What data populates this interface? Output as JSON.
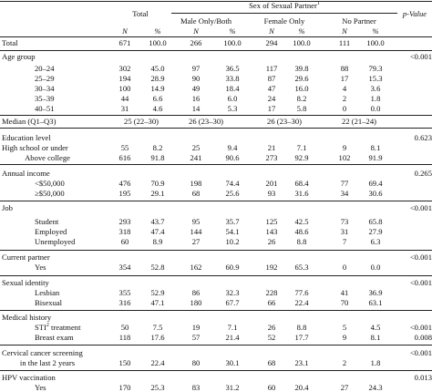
{
  "header": {
    "total": "Total",
    "sex_partner": "Sex of Sexual Partner",
    "sex_partner_sup": "1",
    "pvalue": "p-Value",
    "male": "Male Only/Both",
    "female": "Female Only",
    "nopartner": "No Partner",
    "n_label": "N",
    "pct_label": "%"
  },
  "rows": [
    {
      "label": "Total",
      "indent": 0,
      "center": false,
      "vals": [
        "671",
        "100.0",
        "266",
        "100.0",
        "294",
        "100.0",
        "111",
        "100.0"
      ],
      "p": ""
    },
    {
      "label": "Age group",
      "indent": 0,
      "center": false,
      "vals": [
        "",
        "",
        "",
        "",
        "",
        "",
        "",
        ""
      ],
      "p": "<0.001"
    },
    {
      "label": "20–24",
      "indent": 1,
      "center": false,
      "vals": [
        "302",
        "45.0",
        "97",
        "36.5",
        "117",
        "39.8",
        "88",
        "79.3"
      ],
      "p": ""
    },
    {
      "label": "25–29",
      "indent": 1,
      "center": false,
      "vals": [
        "194",
        "28.9",
        "90",
        "33.8",
        "87",
        "29.6",
        "17",
        "15.3"
      ],
      "p": ""
    },
    {
      "label": "30–34",
      "indent": 1,
      "center": false,
      "vals": [
        "100",
        "14.9",
        "49",
        "18.4",
        "47",
        "16.0",
        "4",
        "3.6"
      ],
      "p": ""
    },
    {
      "label": "35–39",
      "indent": 1,
      "center": false,
      "vals": [
        "44",
        "6.6",
        "16",
        "6.0",
        "24",
        "8.2",
        "2",
        "1.8"
      ],
      "p": ""
    },
    {
      "label": "40–51",
      "indent": 1,
      "center": false,
      "vals": [
        "31",
        "4.6",
        "14",
        "5.3",
        "17",
        "5.8",
        "0",
        "0.0"
      ],
      "p": ""
    },
    {
      "label": "Median (Q1–Q3)",
      "indent": 0,
      "center": false,
      "span": [
        "25 (22–30)",
        "26 (23–30)",
        "26 (23–30)",
        "22 (21–24)"
      ],
      "p": ""
    },
    {
      "label": "Education level",
      "indent": 0,
      "center": false,
      "vals": [
        "",
        "",
        "",
        "",
        "",
        "",
        "",
        ""
      ],
      "p": "0.623"
    },
    {
      "label": "High school or under",
      "indent": 0,
      "center": false,
      "vals": [
        "55",
        "8.2",
        "25",
        "9.4",
        "21",
        "7.1",
        "9",
        "8.1"
      ],
      "p": ""
    },
    {
      "label": "Above college",
      "indent": 0,
      "center": true,
      "vals": [
        "616",
        "91.8",
        "241",
        "90.6",
        "273",
        "92.9",
        "102",
        "91.9"
      ],
      "p": ""
    },
    {
      "label": "Annual income",
      "indent": 0,
      "center": false,
      "vals": [
        "",
        "",
        "",
        "",
        "",
        "",
        "",
        ""
      ],
      "p": "0.265"
    },
    {
      "label": "<$50,000",
      "indent": 1,
      "center": false,
      "vals": [
        "476",
        "70.9",
        "198",
        "74.4",
        "201",
        "68.4",
        "77",
        "69.4"
      ],
      "p": ""
    },
    {
      "label": "≥$50,000",
      "indent": 1,
      "center": false,
      "vals": [
        "195",
        "29.1",
        "68",
        "25.6",
        "93",
        "31.6",
        "34",
        "30.6"
      ],
      "p": ""
    },
    {
      "label": "Job",
      "indent": 0,
      "center": false,
      "vals": [
        "",
        "",
        "",
        "",
        "",
        "",
        "",
        ""
      ],
      "p": "<0.001"
    },
    {
      "label": "Student",
      "indent": 1,
      "center": false,
      "vals": [
        "293",
        "43.7",
        "95",
        "35.7",
        "125",
        "42.5",
        "73",
        "65.8"
      ],
      "p": ""
    },
    {
      "label": "Employed",
      "indent": 1,
      "center": false,
      "vals": [
        "318",
        "47.4",
        "144",
        "54.1",
        "143",
        "48.6",
        "31",
        "27.9"
      ],
      "p": ""
    },
    {
      "label": "Unemployed",
      "indent": 1,
      "center": false,
      "vals": [
        "60",
        "8.9",
        "27",
        "10.2",
        "26",
        "8.8",
        "7",
        "6.3"
      ],
      "p": ""
    },
    {
      "label": "Current partner",
      "indent": 0,
      "center": false,
      "vals": [
        "",
        "",
        "",
        "",
        "",
        "",
        "",
        ""
      ],
      "p": "<0.001"
    },
    {
      "label": "Yes",
      "indent": 1,
      "center": false,
      "vals": [
        "354",
        "52.8",
        "162",
        "60.9",
        "192",
        "65.3",
        "0",
        "0.0"
      ],
      "p": ""
    },
    {
      "label": "Sexual identity",
      "indent": 0,
      "center": false,
      "vals": [
        "",
        "",
        "",
        "",
        "",
        "",
        "",
        ""
      ],
      "p": "<0.001"
    },
    {
      "label": "Lesbian",
      "indent": 1,
      "center": false,
      "vals": [
        "355",
        "52.9",
        "86",
        "32.3",
        "228",
        "77.6",
        "41",
        "36.9"
      ],
      "p": ""
    },
    {
      "label": "Bisexual",
      "indent": 1,
      "center": false,
      "vals": [
        "316",
        "47.1",
        "180",
        "67.7",
        "66",
        "22.4",
        "70",
        "63.1"
      ],
      "p": ""
    },
    {
      "label": "Medical history",
      "indent": 0,
      "center": false,
      "vals": [
        "",
        "",
        "",
        "",
        "",
        "",
        "",
        ""
      ],
      "p": ""
    },
    {
      "label": "STI",
      "label_sup": "2",
      "label_tail": " treatment",
      "indent": 1,
      "center": false,
      "vals": [
        "50",
        "7.5",
        "19",
        "7.1",
        "26",
        "8.8",
        "5",
        "4.5"
      ],
      "p": "<0.001"
    },
    {
      "label": "Breast exam",
      "indent": 1,
      "center": false,
      "vals": [
        "118",
        "17.6",
        "57",
        "21.4",
        "52",
        "17.7",
        "9",
        "8.1"
      ],
      "p": "0.008"
    },
    {
      "label": "Cervical cancer screening",
      "indent": 0,
      "center": false,
      "vals": [
        "",
        "",
        "",
        "",
        "",
        "",
        "",
        ""
      ],
      "p": "<0.001"
    },
    {
      "label": "in the last 2 years",
      "indent": 0,
      "center": true,
      "vals": [
        "150",
        "22.4",
        "80",
        "30.1",
        "68",
        "23.1",
        "2",
        "1.8"
      ],
      "p": ""
    },
    {
      "label": "HPV vaccination",
      "indent": 0,
      "center": false,
      "vals": [
        "",
        "",
        "",
        "",
        "",
        "",
        "",
        ""
      ],
      "p": "0.013"
    },
    {
      "label": "Yes",
      "indent": 1,
      "center": false,
      "vals": [
        "170",
        "25.3",
        "83",
        "31.2",
        "60",
        "20.4",
        "27",
        "24.3"
      ],
      "p": ""
    }
  ]
}
